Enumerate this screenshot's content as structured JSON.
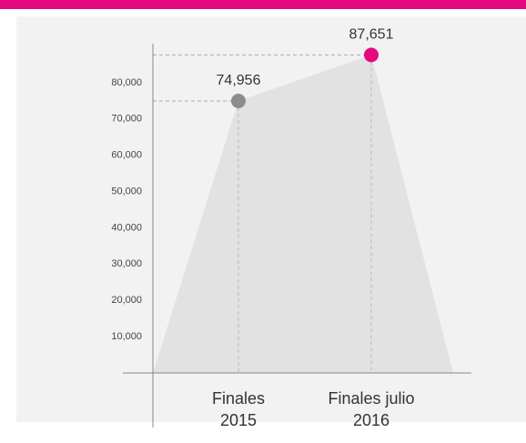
{
  "chart_data": {
    "type": "area",
    "categories": [
      "Finales 2015",
      "Finales julio 2016"
    ],
    "values": [
      74956,
      87651
    ],
    "value_labels": [
      "74,956",
      "87,651"
    ],
    "point_colors": [
      "#8c8c8c",
      "#e5097f"
    ],
    "color": "#e2e2e2",
    "ylim": [
      0,
      90000
    ],
    "yticks": [
      {
        "value": 10000,
        "label": "10,000"
      },
      {
        "value": 20000,
        "label": "20,000"
      },
      {
        "value": 30000,
        "label": "30,000"
      },
      {
        "value": 40000,
        "label": "40,000"
      },
      {
        "value": 50000,
        "label": "50,000"
      },
      {
        "value": 60000,
        "label": "60,000"
      },
      {
        "value": 70000,
        "label": "70,000"
      },
      {
        "value": 80000,
        "label": "80,000"
      }
    ]
  }
}
